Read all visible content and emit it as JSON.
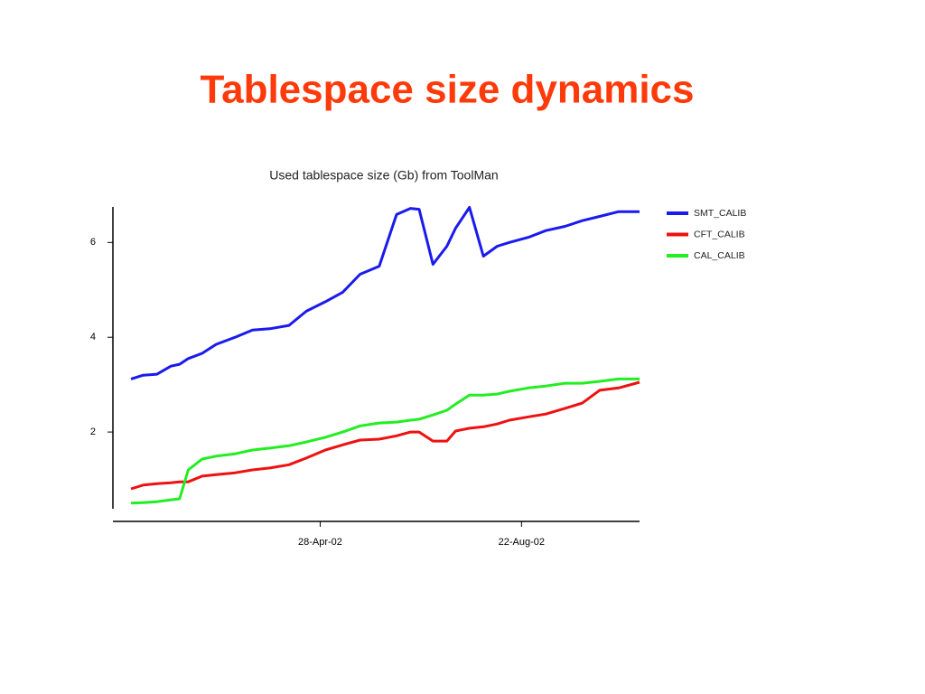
{
  "title": "Tablespace size dynamics",
  "chart_data": {
    "type": "line",
    "title": "Used tablespace size (Gb) from ToolMan",
    "x": [
      "2002-01-09",
      "2002-01-16",
      "2002-01-24",
      "2002-02-01",
      "2002-02-06",
      "2002-02-11",
      "2002-02-19",
      "2002-02-27",
      "2002-03-10",
      "2002-03-20",
      "2002-03-30",
      "2002-04-10",
      "2002-04-20",
      "2002-05-01",
      "2002-05-11",
      "2002-05-21",
      "2002-06-01",
      "2002-06-11",
      "2002-06-19",
      "2002-06-24",
      "2002-07-02",
      "2002-07-10",
      "2002-07-15",
      "2002-07-23",
      "2002-07-31",
      "2002-08-08",
      "2002-08-15",
      "2002-08-26",
      "2002-09-05",
      "2002-09-16",
      "2002-09-26",
      "2002-10-06",
      "2002-10-17",
      "2002-10-29"
    ],
    "series": [
      {
        "name": "SMT_CALIB",
        "color": "#1a1aee",
        "values": [
          3.12,
          3.2,
          3.22,
          3.39,
          3.43,
          3.55,
          3.66,
          3.85,
          4.0,
          4.15,
          4.18,
          4.25,
          4.55,
          4.75,
          4.95,
          5.33,
          5.5,
          6.59,
          6.72,
          6.7,
          5.54,
          5.92,
          6.3,
          6.74,
          5.71,
          5.92,
          6.0,
          6.11,
          6.25,
          6.34,
          6.46,
          6.55,
          6.65,
          6.65
        ]
      },
      {
        "name": "CFT_CALIB",
        "color": "#ee1111",
        "values": [
          0.8,
          0.88,
          0.91,
          0.93,
          0.95,
          0.95,
          1.07,
          1.1,
          1.14,
          1.2,
          1.24,
          1.31,
          1.45,
          1.62,
          1.73,
          1.83,
          1.85,
          1.92,
          2.0,
          2.0,
          1.81,
          1.81,
          2.02,
          2.08,
          2.11,
          2.17,
          2.25,
          2.32,
          2.38,
          2.5,
          2.61,
          2.88,
          2.93,
          3.05
        ]
      },
      {
        "name": "CAL_CALIB",
        "color": "#22ee22",
        "values": [
          0.5,
          0.51,
          0.53,
          0.57,
          0.59,
          1.2,
          1.43,
          1.49,
          1.54,
          1.62,
          1.66,
          1.71,
          1.79,
          1.89,
          2.0,
          2.13,
          2.19,
          2.21,
          2.25,
          2.27,
          2.36,
          2.46,
          2.59,
          2.78,
          2.78,
          2.8,
          2.86,
          2.93,
          2.97,
          3.03,
          3.03,
          3.07,
          3.12,
          3.12
        ]
      }
    ],
    "xlim": [
      "2002-01-09",
      "2002-10-29"
    ],
    "xticks": [
      {
        "value": "2002-04-28",
        "label": "28-Apr-02"
      },
      {
        "value": "2002-08-22",
        "label": "22-Aug-02"
      }
    ],
    "ylim": [
      0.4,
      6.75
    ],
    "yticks": [
      2,
      4,
      6
    ],
    "legend": "right"
  }
}
